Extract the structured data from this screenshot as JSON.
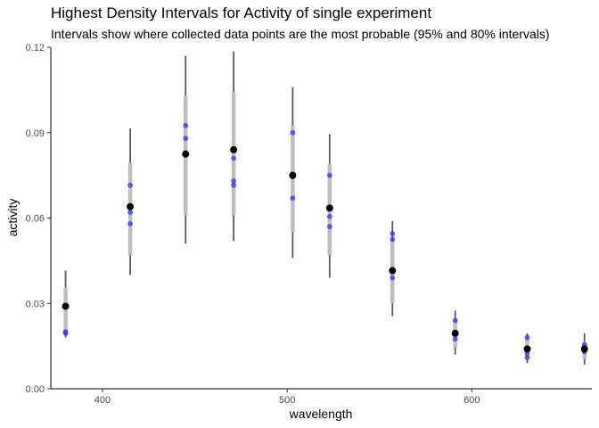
{
  "chart_data": {
    "type": "scatter",
    "title": "Highest Density Intervals for Activity of single experiment",
    "subtitle": "Intervals show where collected data points are the most probable (95% and 80% intervals)",
    "xlabel": "wavelength",
    "ylabel": "activity",
    "xlim": [
      372,
      665
    ],
    "ylim": [
      0,
      0.12
    ],
    "x_ticks": [
      400,
      500,
      600
    ],
    "y_ticks": [
      0,
      0.03,
      0.06,
      0.09,
      0.12
    ],
    "x_tick_labels": [
      "400",
      "500",
      "600"
    ],
    "y_tick_labels": [
      "0.00",
      "0.03",
      "0.06",
      "0.09",
      "0.12"
    ],
    "grid": false,
    "legend": "none",
    "colors": {
      "interval_95": "#595959",
      "interval_80": "#bebebe",
      "estimate_point": "#000000",
      "data_point": "#3333ee"
    },
    "groups": [
      {
        "x": 380,
        "estimate": 0.029,
        "hdi95": [
          0.018,
          0.0415
        ],
        "hdi80": [
          0.02,
          0.0355
        ],
        "points": [
          0.029,
          0.0195,
          0.02
        ]
      },
      {
        "x": 415,
        "estimate": 0.064,
        "hdi95": [
          0.04,
          0.0915
        ],
        "hdi80": [
          0.047,
          0.0795
        ],
        "points": [
          0.0715,
          0.062,
          0.058
        ]
      },
      {
        "x": 445,
        "estimate": 0.0825,
        "hdi95": [
          0.051,
          0.117
        ],
        "hdi80": [
          0.061,
          0.103
        ],
        "points": [
          0.0925,
          0.088,
          0.0825
        ]
      },
      {
        "x": 471,
        "estimate": 0.084,
        "hdi95": [
          0.052,
          0.1185
        ],
        "hdi80": [
          0.061,
          0.1045
        ],
        "points": [
          0.081,
          0.073,
          0.0715
        ]
      },
      {
        "x": 503,
        "estimate": 0.075,
        "hdi95": [
          0.046,
          0.106
        ],
        "hdi80": [
          0.055,
          0.0925
        ],
        "points": [
          0.09,
          0.0745,
          0.067
        ]
      },
      {
        "x": 523,
        "estimate": 0.0635,
        "hdi95": [
          0.039,
          0.0895
        ],
        "hdi80": [
          0.047,
          0.079
        ],
        "points": [
          0.075,
          0.0605,
          0.057
        ]
      },
      {
        "x": 557,
        "estimate": 0.0415,
        "hdi95": [
          0.0255,
          0.059
        ],
        "hdi80": [
          0.03,
          0.052
        ],
        "points": [
          0.0545,
          0.0525,
          0.039
        ]
      },
      {
        "x": 591,
        "estimate": 0.0195,
        "hdi95": [
          0.012,
          0.0275
        ],
        "hdi80": [
          0.0145,
          0.0245
        ],
        "points": [
          0.024,
          0.0195,
          0.0175
        ]
      },
      {
        "x": 630,
        "estimate": 0.014,
        "hdi95": [
          0.009,
          0.0195
        ],
        "hdi80": [
          0.0105,
          0.0175
        ],
        "points": [
          0.018,
          0.0125,
          0.011
        ]
      },
      {
        "x": 661,
        "estimate": 0.014,
        "hdi95": [
          0.0085,
          0.0195
        ],
        "hdi80": [
          0.0105,
          0.0165
        ],
        "points": [
          0.0155,
          0.0145,
          0.013
        ]
      }
    ]
  }
}
